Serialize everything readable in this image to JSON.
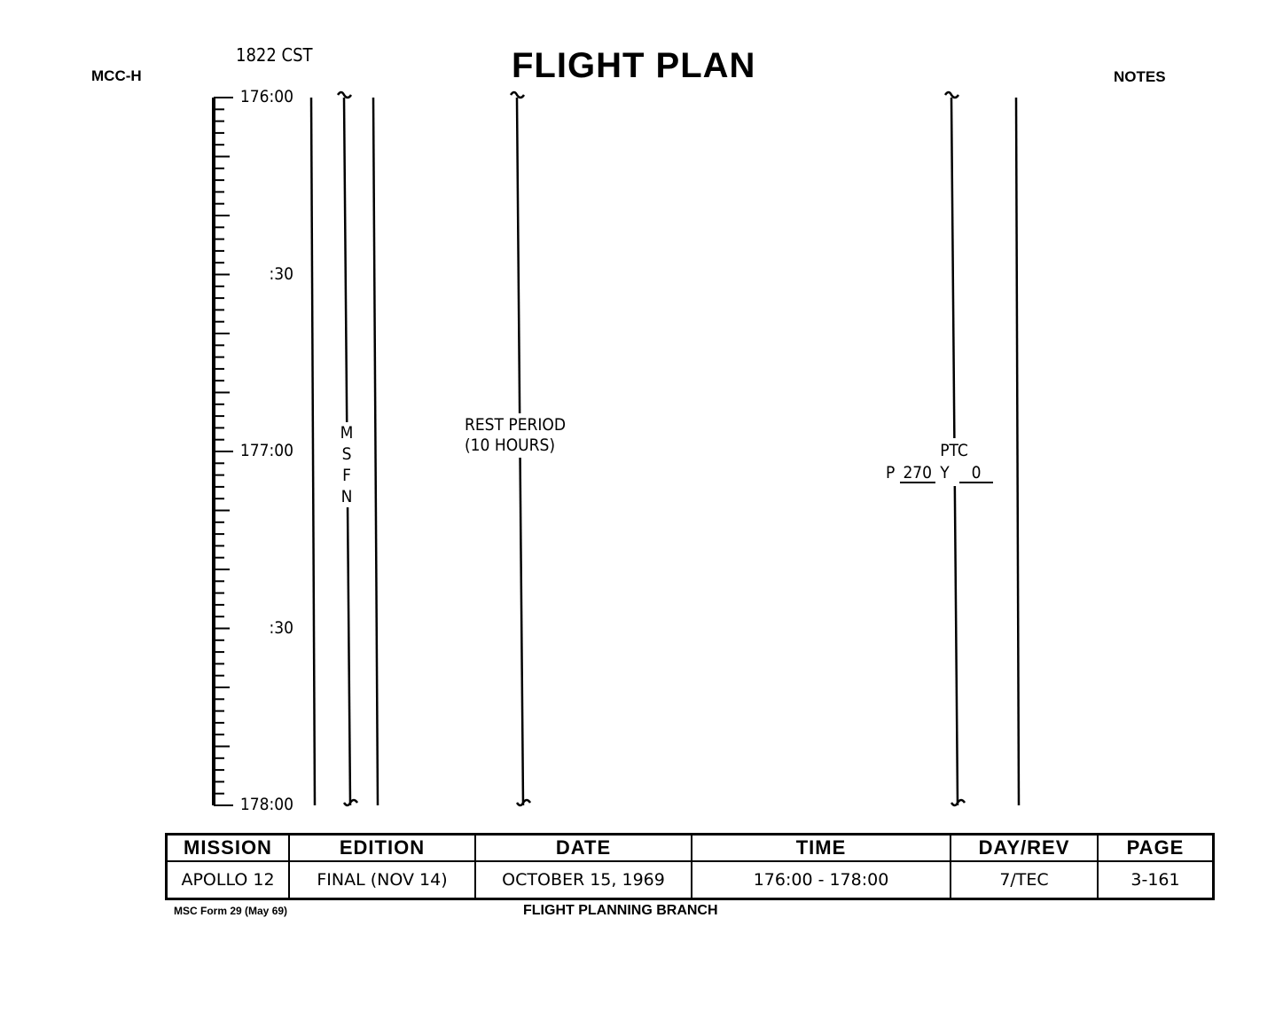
{
  "header": {
    "left": "MCC-H",
    "time": "1822 CST",
    "title": "FLIGHT PLAN",
    "right": "NOTES"
  },
  "timeline": {
    "labels": [
      {
        "text": "176:00",
        "minute": 0
      },
      {
        "text": ":30",
        "minute": 30
      },
      {
        "text": "177:00",
        "minute": 60
      },
      {
        "text": ":30",
        "minute": 90
      },
      {
        "text": "178:00",
        "minute": 120
      }
    ],
    "tick_interval_minutes": 2,
    "major_tick_interval_minutes": 10
  },
  "columns": {
    "msfn": [
      "M",
      "S",
      "F",
      "N"
    ],
    "rest": {
      "line1": "REST PERIOD",
      "line2": "(10 HOURS)"
    },
    "ptc": {
      "title": "PTC",
      "p_label": "P",
      "p_value": "270",
      "y_label": "Y",
      "y_value": "0"
    }
  },
  "footer_table": {
    "headers": [
      "MISSION",
      "EDITION",
      "DATE",
      "TIME",
      "DAY/REV",
      "PAGE"
    ],
    "values": [
      "APOLLO 12",
      "FINAL (NOV 14)",
      "OCTOBER 15, 1969",
      "176:00 - 178:00",
      "7/TEC",
      "3-161"
    ]
  },
  "footer": {
    "form": "MSC Form 29 (May 69)",
    "branch": "FLIGHT PLANNING BRANCH"
  }
}
